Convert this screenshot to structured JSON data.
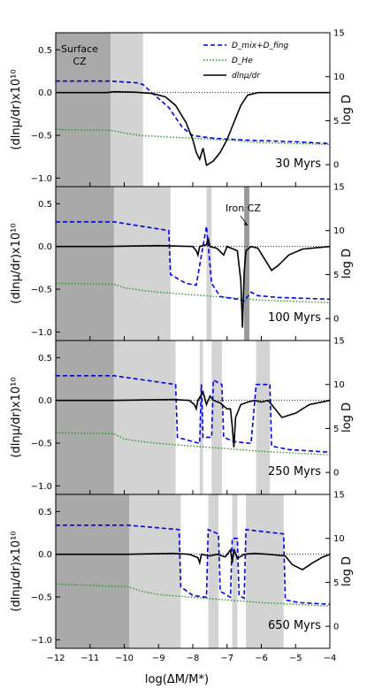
{
  "chart_data": {
    "type": "line",
    "xlabel": "log(ΔM/M*)",
    "xlim": [
      -12,
      -4
    ],
    "xticks": [
      "−12",
      "−11",
      "−10",
      "−9",
      "−8",
      "−7",
      "−6",
      "−5",
      "−4"
    ],
    "ylabel_left": "(dlnμ/dr)x10¹⁰",
    "ylim_left": [
      -1.1,
      0.7
    ],
    "yticks_left": [
      "0.5",
      "0.0",
      "−0.5",
      "−1.0"
    ],
    "ylabel_right": "log D",
    "ylim_right": [
      -2.5,
      15
    ],
    "yticks_right": [
      "15",
      "10",
      "5",
      "0"
    ],
    "legend": {
      "position": "top-right",
      "entries": [
        {
          "label": "D_mix+D_fing",
          "color": "#0000ee",
          "style": "dashed"
        },
        {
          "label": "D_He",
          "color": "#229922",
          "style": "dotted"
        },
        {
          "label": "dlnμ/dr",
          "color": "#000000",
          "style": "solid"
        }
      ]
    },
    "panels": [
      {
        "label": "30 Myrs",
        "annotation": "Surface CZ",
        "dark_band": [
          -12,
          -10.4
        ],
        "light_bands": [
          [
            -10.4,
            -9.45
          ]
        ],
        "dlnmu": [
          [
            -12,
            0
          ],
          [
            -10.5,
            0
          ],
          [
            -10.3,
            0.01
          ],
          [
            -9.7,
            0.005
          ],
          [
            -9.2,
            -0.01
          ],
          [
            -8.8,
            -0.05
          ],
          [
            -8.5,
            -0.15
          ],
          [
            -8.2,
            -0.35
          ],
          [
            -8.0,
            -0.55
          ],
          [
            -7.9,
            -0.7
          ],
          [
            -7.8,
            -0.78
          ],
          [
            -7.7,
            -0.65
          ],
          [
            -7.6,
            -0.85
          ],
          [
            -7.4,
            -0.8
          ],
          [
            -7.2,
            -0.7
          ],
          [
            -7.0,
            -0.55
          ],
          [
            -6.8,
            -0.35
          ],
          [
            -6.6,
            -0.15
          ],
          [
            -6.4,
            -0.03
          ],
          [
            -6.1,
            0
          ],
          [
            -4,
            0
          ]
        ],
        "dmix": [
          [
            -12,
            9.5
          ],
          [
            -10.4,
            9.5
          ],
          [
            -9.6,
            9.3
          ],
          [
            -9.45,
            9.1
          ],
          [
            -9.2,
            8.2
          ],
          [
            -8.7,
            6.5
          ],
          [
            -8.3,
            4.2
          ],
          [
            -8.0,
            3.3
          ],
          [
            -7.4,
            3.0
          ],
          [
            -6.5,
            2.8
          ],
          [
            -5,
            2.6
          ],
          [
            -4,
            2.4
          ]
        ],
        "dhe": [
          [
            -12,
            4
          ],
          [
            -10.4,
            3.9
          ],
          [
            -10,
            3.6
          ],
          [
            -9.5,
            3.3
          ],
          [
            -9,
            3.2
          ],
          [
            -8,
            3.0
          ],
          [
            -7,
            2.8
          ],
          [
            -6,
            2.5
          ],
          [
            -4,
            2.3
          ]
        ]
      },
      {
        "label": "100 Myrs",
        "annotation": "Iron CZ",
        "dark_band": [
          -12,
          -10.3
        ],
        "light_bands": [
          [
            -10.3,
            -8.65
          ],
          [
            -7.6,
            -7.45
          ]
        ],
        "dark_bands_extra": [
          [
            -6.5,
            -6.35
          ]
        ],
        "dlnmu": [
          [
            -12,
            0
          ],
          [
            -10.5,
            0
          ],
          [
            -9.0,
            0.01
          ],
          [
            -8.0,
            0
          ],
          [
            -7.9,
            -0.05
          ],
          [
            -7.85,
            -0.1
          ],
          [
            -7.8,
            0
          ],
          [
            -7.6,
            0.02
          ],
          [
            -7.55,
            0.1
          ],
          [
            -7.5,
            0
          ],
          [
            -7.3,
            -0.02
          ],
          [
            -7.1,
            -0.1
          ],
          [
            -7.0,
            0
          ],
          [
            -6.7,
            -0.05
          ],
          [
            -6.6,
            -0.4
          ],
          [
            -6.55,
            -0.95
          ],
          [
            -6.5,
            -0.3
          ],
          [
            -6.45,
            -0.05
          ],
          [
            -6.3,
            0
          ],
          [
            -6.1,
            -0.02
          ],
          [
            -5.9,
            -0.15
          ],
          [
            -5.7,
            -0.28
          ],
          [
            -5.5,
            -0.22
          ],
          [
            -5.2,
            -0.1
          ],
          [
            -4.8,
            -0.03
          ],
          [
            -4,
            0
          ]
        ],
        "dmix": [
          [
            -12,
            11
          ],
          [
            -10.3,
            11
          ],
          [
            -8.7,
            10
          ],
          [
            -8.65,
            5
          ],
          [
            -8.2,
            4
          ],
          [
            -7.9,
            3.8
          ],
          [
            -7.6,
            10.5
          ],
          [
            -7.45,
            4
          ],
          [
            -7.2,
            2.5
          ],
          [
            -6.7,
            2.2
          ],
          [
            -6.5,
            2.0
          ],
          [
            -6.3,
            3
          ],
          [
            -6.1,
            2.6
          ],
          [
            -5.5,
            2.4
          ],
          [
            -4,
            2.2
          ]
        ],
        "dhe": [
          [
            -12,
            4
          ],
          [
            -10.3,
            3.9
          ],
          [
            -10,
            3.5
          ],
          [
            -9.5,
            3.2
          ],
          [
            -9,
            3.0
          ],
          [
            -8,
            2.7
          ],
          [
            -7,
            2.4
          ],
          [
            -6,
            2.1
          ],
          [
            -4,
            1.8
          ]
        ]
      },
      {
        "label": "250 Myrs",
        "dark_band": [
          -12,
          -10.3
        ],
        "light_bands": [
          [
            -10.3,
            -8.5
          ],
          [
            -7.8,
            -7.7
          ],
          [
            -7.45,
            -7.15
          ],
          [
            -6.15,
            -5.75
          ]
        ],
        "dlnmu": [
          [
            -12,
            0
          ],
          [
            -10.3,
            0
          ],
          [
            -8.6,
            0.01
          ],
          [
            -8.1,
            0
          ],
          [
            -7.95,
            -0.05
          ],
          [
            -7.9,
            -0.1
          ],
          [
            -7.85,
            0
          ],
          [
            -7.7,
            0.1
          ],
          [
            -7.6,
            -0.05
          ],
          [
            -7.5,
            0.05
          ],
          [
            -7.4,
            0
          ],
          [
            -7.2,
            -0.03
          ],
          [
            -7.0,
            -0.1
          ],
          [
            -6.9,
            -0.1
          ],
          [
            -6.85,
            -0.3
          ],
          [
            -6.8,
            -0.55
          ],
          [
            -6.75,
            -0.2
          ],
          [
            -6.6,
            -0.05
          ],
          [
            -6.4,
            -0.02
          ],
          [
            -6.2,
            0
          ],
          [
            -6.0,
            -0.02
          ],
          [
            -5.8,
            0
          ],
          [
            -5.6,
            -0.1
          ],
          [
            -5.4,
            -0.2
          ],
          [
            -5.0,
            -0.15
          ],
          [
            -4.6,
            -0.05
          ],
          [
            -4,
            0
          ]
        ],
        "dmix": [
          [
            -12,
            11
          ],
          [
            -10.3,
            11
          ],
          [
            -8.5,
            10
          ],
          [
            -8.45,
            4
          ],
          [
            -8.0,
            3.5
          ],
          [
            -7.8,
            3.3
          ],
          [
            -7.75,
            10
          ],
          [
            -7.7,
            4
          ],
          [
            -7.45,
            4
          ],
          [
            -7.4,
            10.5
          ],
          [
            -7.15,
            10
          ],
          [
            -7.1,
            4
          ],
          [
            -6.8,
            3.5
          ],
          [
            -6.3,
            3.3
          ],
          [
            -6.15,
            10
          ],
          [
            -5.75,
            10
          ],
          [
            -5.7,
            3
          ],
          [
            -5.2,
            2.6
          ],
          [
            -4,
            2.3
          ]
        ],
        "dhe": [
          [
            -12,
            4.5
          ],
          [
            -10.3,
            4.4
          ],
          [
            -10,
            3.8
          ],
          [
            -9.5,
            3.5
          ],
          [
            -9,
            3.3
          ],
          [
            -8,
            3.0
          ],
          [
            -7,
            2.7
          ],
          [
            -6,
            2.4
          ],
          [
            -4,
            2.0
          ]
        ]
      },
      {
        "label": "650 Myrs",
        "dark_band": [
          -12,
          -9.85
        ],
        "light_bands": [
          [
            -9.85,
            -8.35
          ],
          [
            -7.55,
            -7.25
          ],
          [
            -6.85,
            -6.7
          ],
          [
            -6.45,
            -5.35
          ]
        ],
        "dlnmu": [
          [
            -12,
            0
          ],
          [
            -9.9,
            0
          ],
          [
            -8.6,
            0.01
          ],
          [
            -8.1,
            0
          ],
          [
            -7.85,
            -0.04
          ],
          [
            -7.8,
            -0.1
          ],
          [
            -7.75,
            0
          ],
          [
            -7.5,
            -0.02
          ],
          [
            -7.3,
            0
          ],
          [
            -7.05,
            -0.03
          ],
          [
            -6.9,
            0.05
          ],
          [
            -6.85,
            -0.1
          ],
          [
            -6.8,
            0.06
          ],
          [
            -6.7,
            -0.05
          ],
          [
            -6.5,
            0
          ],
          [
            -6.2,
            0.01
          ],
          [
            -5.8,
            0
          ],
          [
            -5.3,
            -0.02
          ],
          [
            -5.1,
            -0.12
          ],
          [
            -4.8,
            -0.18
          ],
          [
            -4.5,
            -0.1
          ],
          [
            -4.2,
            -0.03
          ],
          [
            -4,
            0
          ]
        ],
        "dmix": [
          [
            -12,
            11.5
          ],
          [
            -9.9,
            11.5
          ],
          [
            -8.4,
            11
          ],
          [
            -8.35,
            4.5
          ],
          [
            -8.0,
            3.5
          ],
          [
            -7.6,
            3.3
          ],
          [
            -7.55,
            11
          ],
          [
            -7.25,
            10.5
          ],
          [
            -7.2,
            4
          ],
          [
            -6.9,
            3.3
          ],
          [
            -6.85,
            10
          ],
          [
            -6.7,
            10
          ],
          [
            -6.65,
            3.5
          ],
          [
            -6.5,
            3.2
          ],
          [
            -6.45,
            11
          ],
          [
            -5.35,
            10.5
          ],
          [
            -5.3,
            3
          ],
          [
            -4.9,
            2.7
          ],
          [
            -4,
            2.5
          ]
        ],
        "dhe": [
          [
            -12,
            4.8
          ],
          [
            -9.9,
            4.5
          ],
          [
            -9.5,
            4.0
          ],
          [
            -9,
            3.6
          ],
          [
            -8,
            3.3
          ],
          [
            -7,
            3.0
          ],
          [
            -6,
            2.7
          ],
          [
            -4,
            2.3
          ]
        ]
      }
    ]
  }
}
